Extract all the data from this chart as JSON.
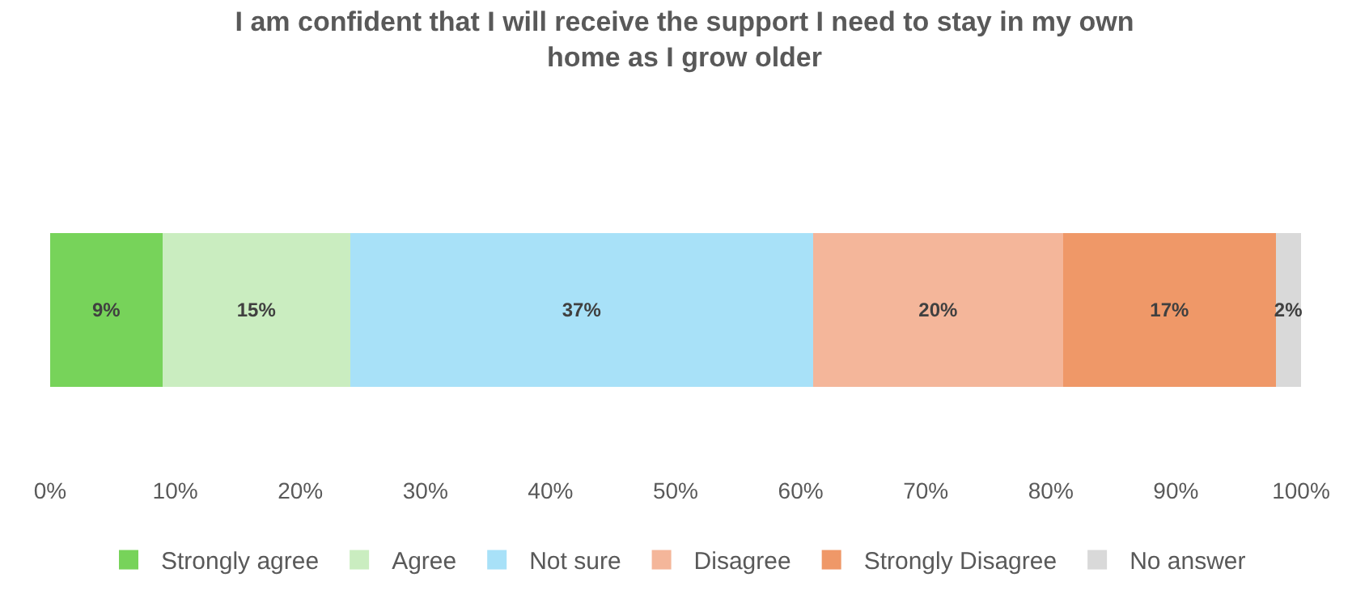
{
  "chart_data": {
    "type": "bar",
    "orientation": "horizontal",
    "stacked": true,
    "title": "I am confident that I will receive the support I need to stay in my own home as I grow older",
    "categories": [
      null
    ],
    "series": [
      {
        "name": "Strongly agree",
        "color": "#77d35a",
        "values": [
          9
        ],
        "value_labels": [
          "9%"
        ]
      },
      {
        "name": "Agree",
        "color": "#caedc0",
        "values": [
          15
        ],
        "value_labels": [
          "15%"
        ]
      },
      {
        "name": "Not sure",
        "color": "#a8e1f8",
        "values": [
          37
        ],
        "value_labels": [
          "37%"
        ]
      },
      {
        "name": "Disagree",
        "color": "#f4b69a",
        "values": [
          20
        ],
        "value_labels": [
          "20%"
        ]
      },
      {
        "name": "Strongly Disagree",
        "color": "#ef9868",
        "values": [
          17
        ],
        "value_labels": [
          "17%"
        ]
      },
      {
        "name": "No answer",
        "color": "#d9d9d9",
        "values": [
          2
        ],
        "value_labels": [
          "2%"
        ]
      }
    ],
    "xlim": [
      0,
      100
    ],
    "xticks": [
      {
        "value": 0,
        "label": "0%"
      },
      {
        "value": 10,
        "label": "10%"
      },
      {
        "value": 20,
        "label": "20%"
      },
      {
        "value": 30,
        "label": "30%"
      },
      {
        "value": 40,
        "label": "40%"
      },
      {
        "value": 50,
        "label": "50%"
      },
      {
        "value": 60,
        "label": "60%"
      },
      {
        "value": 70,
        "label": "70%"
      },
      {
        "value": 80,
        "label": "80%"
      },
      {
        "value": 90,
        "label": "90%"
      },
      {
        "value": 100,
        "label": "100%"
      }
    ],
    "legend": "bottom",
    "tick_labels": "x"
  }
}
